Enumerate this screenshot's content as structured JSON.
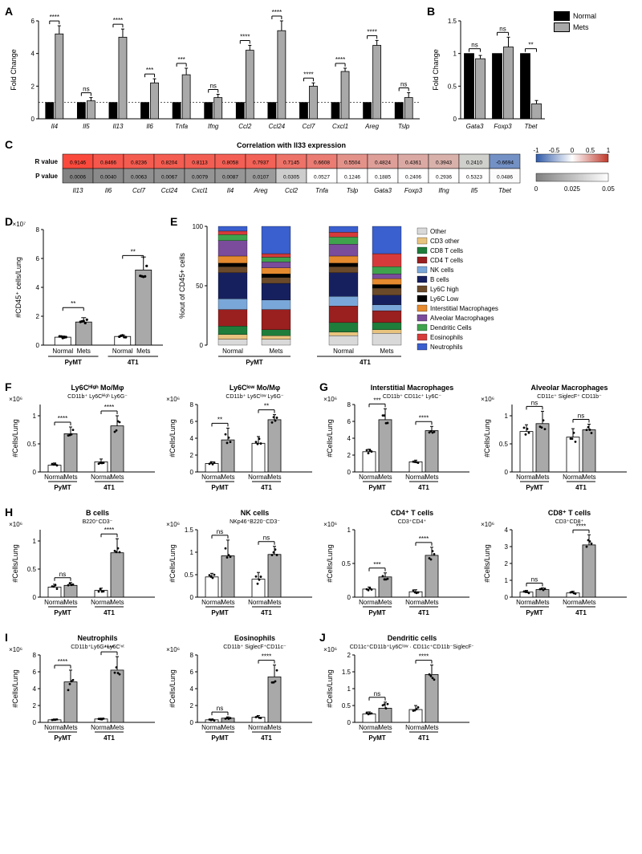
{
  "legendA": {
    "normal": "Normal",
    "mets": "Mets"
  },
  "colors": {
    "normal": "#000000",
    "mets": "#a9a9a9",
    "normal_out": "#ffffff",
    "ns": "ns"
  },
  "A": {
    "ylabel": "Fold Change",
    "ylim": 6,
    "yticks": [
      0,
      2,
      4,
      6
    ],
    "genes": [
      "Il4",
      "Il5",
      "Il13",
      "Il6",
      "Tnfa",
      "Ifng",
      "Ccl2",
      "Ccl24",
      "Ccl7",
      "Cxcl1",
      "Areg",
      "Tslp"
    ],
    "normal": [
      1,
      1,
      1,
      1,
      1,
      1,
      1,
      1,
      1,
      1,
      1,
      1
    ],
    "mets": [
      5.2,
      1.1,
      5.0,
      2.2,
      2.7,
      1.3,
      4.2,
      5.4,
      2.0,
      2.9,
      4.5,
      1.3
    ],
    "mets_err": [
      0.5,
      0.2,
      0.5,
      0.25,
      0.4,
      0.2,
      0.3,
      0.6,
      0.2,
      0.2,
      0.3,
      0.3
    ],
    "sig": [
      "****",
      "ns",
      "****",
      "***",
      "***",
      "ns",
      "****",
      "****",
      "****",
      "****",
      "****",
      "ns"
    ],
    "barw": 10,
    "gap": 2
  },
  "B": {
    "ylabel": "Fold Change",
    "ylim": 1.5,
    "yticks": [
      0,
      0.5,
      1.0,
      1.5
    ],
    "genes": [
      "Gata3",
      "Foxp3",
      "Tbet"
    ],
    "normal": [
      1,
      1,
      1
    ],
    "mets": [
      0.92,
      1.1,
      0.23
    ],
    "mets_err": [
      0.05,
      0.15,
      0.05
    ],
    "sig": [
      "ns",
      "ns",
      "**"
    ]
  },
  "C": {
    "title": "Correlation with Il33 expression",
    "rowLabels": [
      "R value",
      "P value"
    ],
    "genes": [
      "Il13",
      "Il6",
      "Ccl7",
      "Ccl24",
      "Cxcl1",
      "Il4",
      "Areg",
      "Ccl2",
      "Tnfa",
      "Tslp",
      "Gata3",
      "Foxp3",
      "Ifng",
      "Il5",
      "Tbet"
    ],
    "r": [
      0.9146,
      0.8466,
      0.8236,
      0.8204,
      0.8113,
      0.8058,
      0.7937,
      0.7145,
      0.6608,
      0.5504,
      0.4824,
      0.4361,
      0.3943,
      0.241,
      -0.6694
    ],
    "p": [
      0.0006,
      0.004,
      0.0063,
      0.0067,
      0.0079,
      0.0087,
      0.0107,
      0.0305,
      0.0527,
      0.1246,
      0.1885,
      0.2406,
      0.2936,
      0.5323,
      0.0486
    ],
    "scale_r": {
      "min": -1.0,
      "max": 1.0,
      "ticks": [
        -1.0,
        -0.5,
        0,
        0.5,
        1.0
      ],
      "neg": "#2f5aa8",
      "pos": "#c0392b"
    },
    "scale_p": {
      "min": 0,
      "max": 0.05,
      "ticks": [
        0,
        0.025,
        0.05
      ],
      "color": "#808080"
    }
  },
  "D": {
    "ylabel": "#CD45⁺ cells/Lung",
    "exp": "×10⁷",
    "ylim": 8,
    "yticks": [
      0,
      2,
      4,
      6,
      8
    ],
    "groups": [
      "PyMT",
      "4T1"
    ],
    "means": {
      "PyMT": {
        "Normal": 0.55,
        "Mets": 1.6
      },
      "4T1": {
        "Normal": 0.6,
        "Mets": 5.2
      }
    },
    "sig": {
      "PyMT": "**",
      "4T1": "**"
    },
    "err": {
      "PyMT": {
        "Normal": 0.08,
        "Mets": 0.3
      },
      "4T1": {
        "Normal": 0.1,
        "Mets": 0.9
      }
    }
  },
  "E": {
    "ylabel": "%out of CD45+ cells",
    "xcats": [
      "Normal",
      "Mets",
      "Normal",
      "Mets"
    ],
    "groups": [
      "PyMT",
      "4T1"
    ],
    "legend": [
      {
        "name": "Other",
        "color": "#d9d9d9"
      },
      {
        "name": "CD3 other",
        "color": "#e8c37e"
      },
      {
        "name": "CD8 T cells",
        "color": "#1e7d3a"
      },
      {
        "name": "CD4 T cells",
        "color": "#9a1f1f"
      },
      {
        "name": "NK cells",
        "color": "#7aa7d9"
      },
      {
        "name": "B cells",
        "color": "#17205f"
      },
      {
        "name": "Ly6C high",
        "color": "#6b4a2a"
      },
      {
        "name": "Ly6C Low",
        "color": "#000000"
      },
      {
        "name": "Interstitial Macrophages",
        "color": "#e58a2e"
      },
      {
        "name": "Alveolar Macrophages",
        "color": "#7a4c9b"
      },
      {
        "name": "Dendritic Cells",
        "color": "#3fa34d"
      },
      {
        "name": "Eosinophils",
        "color": "#d63a3a"
      },
      {
        "name": "Neutrophils",
        "color": "#3a5fce"
      }
    ],
    "stacks": {
      "PyMT_Normal": [
        5,
        4,
        7,
        14,
        9,
        22,
        5,
        3,
        6,
        13,
        5,
        3,
        4
      ],
      "PyMT_Mets": [
        5,
        3,
        5,
        17,
        8,
        14,
        5,
        3,
        5,
        5,
        4,
        3,
        23
      ],
      "4T1_Normal": [
        8,
        3,
        8,
        14,
        8,
        20,
        5,
        3,
        6,
        10,
        6,
        4,
        5
      ],
      "4T1_Mets": [
        10,
        3,
        6,
        10,
        5,
        8,
        6,
        3,
        5,
        4,
        6,
        11,
        23
      ]
    }
  },
  "small": {
    "ylabel": "#Cells/Lung",
    "xcats": [
      "Normal",
      "Mets",
      "Normal",
      "Mets"
    ],
    "groups": [
      "PyMT",
      "4T1"
    ],
    "charts": [
      {
        "id": "F1",
        "letter": "F",
        "title": "Ly6Cᴴⁱᵍʰ Mo/Mφ",
        "sub": "CD11b⁺ Ly6Cᴴⁱᵍʰ Ly6G⁻",
        "exp": "×10⁶",
        "ylim": 1.2,
        "yticks": [
          0,
          0.5,
          1.0
        ],
        "vals": [
          0.12,
          0.68,
          0.18,
          0.82
        ],
        "err": [
          0.04,
          0.12,
          0.05,
          0.18
        ],
        "sig": [
          "****",
          "****"
        ]
      },
      {
        "id": "F2",
        "title": "Ly6Cˡᵒʷ Mo/Mφ",
        "sub": "CD11b⁺ Ly6Cˡᵒʷ Ly6G⁻",
        "exp": "×10⁶",
        "ylim": 8,
        "yticks": [
          0,
          2,
          4,
          6,
          8
        ],
        "vals": [
          1.0,
          3.8,
          3.4,
          6.2
        ],
        "err": [
          0.2,
          1.4,
          0.8,
          0.6
        ],
        "sig": [
          "**",
          "**"
        ]
      },
      {
        "id": "G1",
        "letter": "G",
        "title": "Interstitial Macrophages",
        "sub": "CD11b⁺ CD11c⁺ Ly6C⁻",
        "exp": "×10⁶",
        "ylim": 8,
        "yticks": [
          0,
          2,
          4,
          6,
          8
        ],
        "vals": [
          2.4,
          6.2,
          1.2,
          4.9
        ],
        "err": [
          0.3,
          1.3,
          0.2,
          0.5
        ],
        "sig": [
          "***",
          "****"
        ]
      },
      {
        "id": "G2",
        "title": "Alveolar Macrophages",
        "sub": "CD11c⁺ SiglecF⁺ CD11b⁻",
        "exp": "×10⁶",
        "ylim": 1.2,
        "yticks": [
          0,
          0.5,
          1.0
        ],
        "vals": [
          0.72,
          0.86,
          0.62,
          0.75
        ],
        "err": [
          0.12,
          0.22,
          0.15,
          0.1
        ],
        "sig": [
          "ns",
          "ns"
        ]
      },
      {
        "id": "H1",
        "letter": "H",
        "title": "B cells",
        "sub": "B220⁺CD3⁻",
        "exp": "×10⁶",
        "ylim": 1.2,
        "yticks": [
          0,
          0.5,
          1.0
        ],
        "vals": [
          0.18,
          0.21,
          0.12,
          0.79
        ],
        "err": [
          0.05,
          0.05,
          0.04,
          0.25
        ],
        "sig": [
          "ns",
          "****"
        ]
      },
      {
        "id": "H2",
        "title": "NK cells",
        "sub": "NKp46⁺B220⁻CD3⁻",
        "exp": "×10⁶",
        "ylim": 1.5,
        "yticks": [
          0,
          0.5,
          1.0,
          1.5
        ],
        "vals": [
          0.45,
          0.92,
          0.4,
          0.95
        ],
        "err": [
          0.08,
          0.35,
          0.15,
          0.18
        ],
        "sig": [
          "ns",
          "ns"
        ]
      },
      {
        "id": "H3",
        "title": "CD4⁺ T cells",
        "sub": "CD3⁺CD4⁺",
        "exp": "×10⁶",
        "ylim": 1.0,
        "yticks": [
          0,
          0.5,
          1.0
        ],
        "vals": [
          0.12,
          0.3,
          0.08,
          0.62
        ],
        "err": [
          0.03,
          0.06,
          0.03,
          0.12
        ],
        "sig": [
          "***",
          "****"
        ]
      },
      {
        "id": "H4",
        "title": "CD8⁺ T cells",
        "sub": "CD3⁺CD8⁺",
        "exp": "×10⁶",
        "ylim": 4,
        "yticks": [
          0,
          1,
          2,
          3,
          4
        ],
        "vals": [
          0.3,
          0.45,
          0.25,
          3.1
        ],
        "err": [
          0.1,
          0.1,
          0.1,
          0.6
        ],
        "sig": [
          "ns",
          "****"
        ]
      },
      {
        "id": "I1",
        "letter": "I",
        "title": "Neutrophils",
        "sub": "CD11b⁺Ly6G⁺Ly6Cⁱⁿᵗ",
        "exp": "×10⁶",
        "ylim": 8,
        "yticks": [
          0,
          2,
          4,
          6,
          8
        ],
        "vals": [
          0.3,
          4.8,
          0.4,
          6.2
        ],
        "err": [
          0.1,
          1.4,
          0.1,
          1.6
        ],
        "sig": [
          "****",
          "****"
        ]
      },
      {
        "id": "I2",
        "title": "Eosinophils",
        "sub": "CD11b⁺ SiglecF⁺CD11c⁻",
        "exp": "×10⁶",
        "ylim": 8,
        "yticks": [
          0,
          2,
          4,
          6,
          8
        ],
        "vals": [
          0.3,
          0.5,
          0.6,
          5.4
        ],
        "err": [
          0.1,
          0.15,
          0.2,
          1.4
        ],
        "sig": [
          "ns",
          "****"
        ]
      },
      {
        "id": "J1",
        "letter": "J",
        "title": "Dendritic cells",
        "sub": "CD11c⁺CD11b⁺Ly6Cˡᵒʷ · CD11c⁺CD11b⁻SiglecF⁻",
        "exp": "×10⁶",
        "ylim": 2.0,
        "yticks": [
          0,
          0.5,
          1.0,
          1.5,
          2.0
        ],
        "vals": [
          0.25,
          0.42,
          0.38,
          1.42
        ],
        "err": [
          0.06,
          0.18,
          0.12,
          0.28
        ],
        "sig": [
          "ns",
          "****"
        ]
      }
    ]
  }
}
